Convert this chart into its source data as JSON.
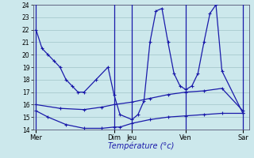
{
  "background_color": "#cce8ec",
  "grid_color": "#a0c4c8",
  "line_color": "#1a1aaa",
  "xlabel": "Température (°c)",
  "ylim": [
    14,
    24
  ],
  "xlim": [
    0,
    36
  ],
  "yticks": [
    14,
    15,
    16,
    17,
    18,
    19,
    20,
    21,
    22,
    23,
    24
  ],
  "x_day_positions": [
    0.5,
    13.5,
    16.5,
    25.5,
    35.0
  ],
  "x_day_labels": [
    "Mer",
    "Dim",
    "Jeu",
    "Ven",
    "Sar"
  ],
  "line1_x": [
    0.5,
    1.5,
    2.5,
    3.5,
    4.5,
    5.5,
    6.5,
    7.5,
    8.5,
    10.5,
    12.5,
    13.5,
    14.5,
    16.5,
    17.5,
    18.5,
    19.5,
    20.5,
    21.5,
    22.5,
    23.5,
    24.5,
    25.5,
    26.5,
    27.5,
    28.5,
    29.5,
    30.5,
    31.5,
    35.0
  ],
  "line1_y": [
    22.0,
    20.5,
    20.0,
    19.5,
    19.0,
    18.0,
    17.5,
    17.0,
    17.0,
    18.0,
    19.0,
    16.8,
    15.2,
    14.8,
    15.2,
    16.3,
    21.0,
    23.5,
    23.7,
    21.0,
    18.5,
    17.5,
    17.2,
    17.5,
    18.5,
    21.0,
    23.3,
    24.0,
    18.7,
    15.3
  ],
  "line2_x": [
    0.5,
    2.5,
    5.5,
    8.5,
    11.5,
    13.5,
    14.5,
    16.5,
    19.5,
    22.5,
    25.5,
    28.5,
    31.5,
    35.0
  ],
  "line2_y": [
    15.5,
    15.0,
    14.4,
    14.1,
    14.1,
    14.2,
    14.2,
    14.5,
    14.8,
    15.0,
    15.1,
    15.2,
    15.3,
    15.3
  ],
  "line3_x": [
    0.5,
    4.5,
    8.5,
    11.5,
    13.5,
    16.5,
    19.5,
    22.5,
    25.5,
    28.5,
    31.5,
    35.0
  ],
  "line3_y": [
    16.0,
    15.7,
    15.6,
    15.8,
    16.0,
    16.2,
    16.5,
    16.8,
    17.0,
    17.1,
    17.3,
    15.5
  ],
  "vline_positions": [
    0.5,
    13.5,
    16.5,
    25.5,
    35.0
  ]
}
